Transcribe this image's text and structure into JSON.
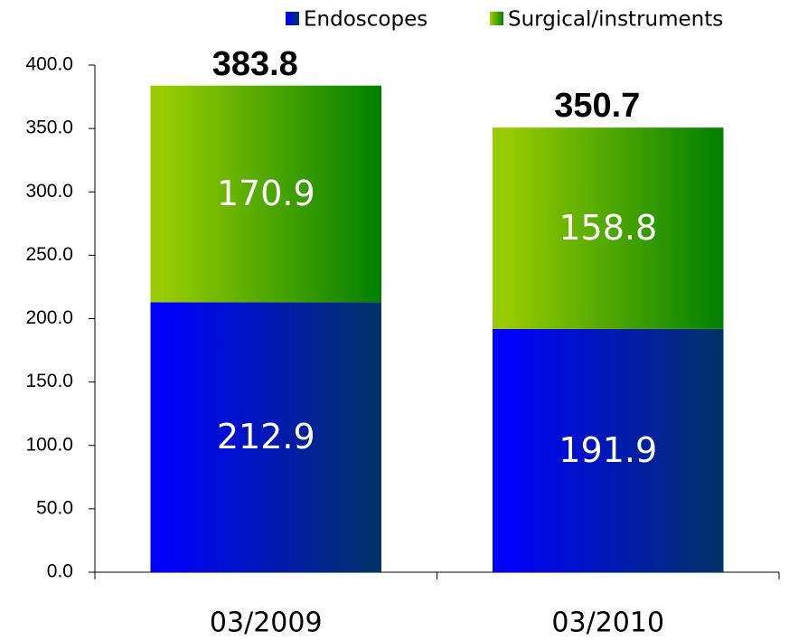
{
  "chart_data": {
    "type": "stacked_bar",
    "categories": [
      "03/2009",
      "03/2010"
    ],
    "series": [
      {
        "name": "Endoscopes",
        "color": [
          "#0000ff",
          "#003366"
        ],
        "values": [
          212.9,
          191.9
        ]
      },
      {
        "name": "Surgical/instruments",
        "color": [
          "#99cc00",
          "#008000"
        ],
        "values": [
          170.9,
          158.8
        ]
      }
    ],
    "totals": [
      383.8,
      350.7
    ],
    "ylim": [
      0,
      400
    ],
    "yticks": [
      {
        "value": 0,
        "label": "0.0"
      },
      {
        "value": 50,
        "label": "50.0"
      },
      {
        "value": 100,
        "label": "100.0"
      },
      {
        "value": 150,
        "label": "150.0"
      },
      {
        "value": 200,
        "label": "200.0"
      },
      {
        "value": 250,
        "label": "250.0"
      },
      {
        "value": 300,
        "label": "300.0"
      },
      {
        "value": 350,
        "label": "350.0"
      },
      {
        "value": 400,
        "label": "400.0"
      }
    ],
    "legend": "top-right"
  }
}
